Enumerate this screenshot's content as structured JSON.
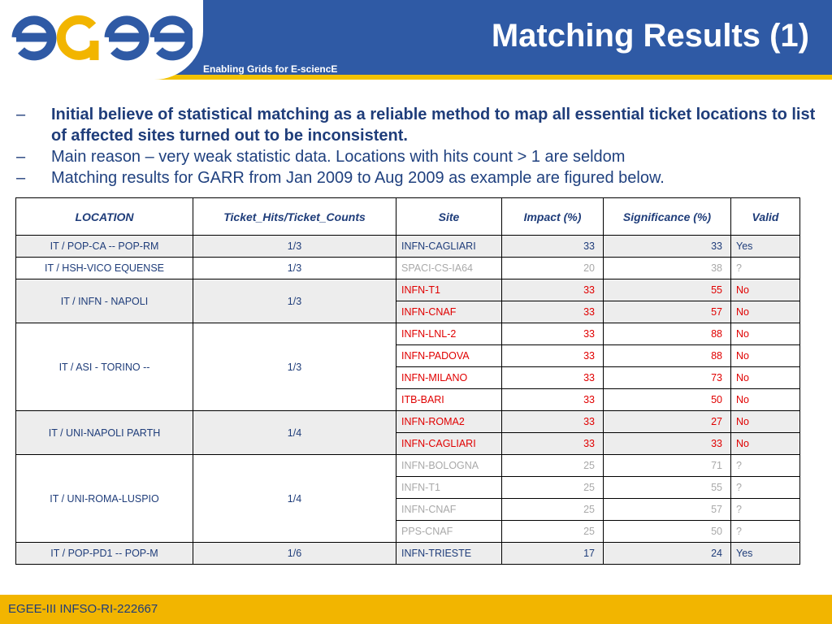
{
  "header": {
    "logo_text": "egee",
    "tagline": "Enabling Grids for E-sciencE",
    "title": "Matching Results (1)"
  },
  "bullets": [
    {
      "marker": "–",
      "text": "Initial believe of statistical matching as a reliable method to map all essential ticket locations to list of affected sites turned out to be inconsistent.",
      "bold": true
    },
    {
      "marker": "–",
      "text": "Main reason – very weak statistic data. Locations with hits count > 1 are seldom",
      "bold": false
    },
    {
      "marker": "–",
      "text": "Matching results for GARR from Jan 2009 to Aug 2009 as example are figured below.",
      "bold": false
    }
  ],
  "table": {
    "headers": [
      "LOCATION",
      "Ticket_Hits/Ticket_Counts",
      "Site",
      "Impact (%)",
      "Significance (%)",
      "Valid"
    ],
    "groups": [
      {
        "location": "IT / POP-CA -- POP-RM",
        "ratio": "1/3",
        "shaded": true,
        "rows": [
          {
            "site": "INFN-CAGLIARI",
            "impact": "33",
            "significance": "33",
            "valid": "Yes",
            "color": "blue"
          }
        ]
      },
      {
        "location": "IT / HSH-VICO EQUENSE",
        "ratio": "1/3",
        "shaded": false,
        "rows": [
          {
            "site": "SPACI-CS-IA64",
            "impact": "20",
            "significance": "38",
            "valid": "?",
            "color": "gray"
          }
        ]
      },
      {
        "location": "IT / INFN - NAPOLI",
        "ratio": "1/3",
        "shaded": true,
        "rows": [
          {
            "site": "INFN-T1",
            "impact": "33",
            "significance": "55",
            "valid": "No",
            "color": "red"
          },
          {
            "site": "INFN-CNAF",
            "impact": "33",
            "significance": "57",
            "valid": "No",
            "color": "red"
          }
        ]
      },
      {
        "location": "IT / ASI - TORINO --",
        "ratio": "1/3",
        "shaded": false,
        "rows": [
          {
            "site": "INFN-LNL-2",
            "impact": "33",
            "significance": "88",
            "valid": "No",
            "color": "red"
          },
          {
            "site": "INFN-PADOVA",
            "impact": "33",
            "significance": "88",
            "valid": "No",
            "color": "red"
          },
          {
            "site": "INFN-MILANO",
            "impact": "33",
            "significance": "73",
            "valid": "No",
            "color": "red"
          },
          {
            "site": "ITB-BARI",
            "impact": "33",
            "significance": "50",
            "valid": "No",
            "color": "red"
          }
        ]
      },
      {
        "location": "IT / UNI-NAPOLI PARTH",
        "ratio": "1/4",
        "shaded": true,
        "rows": [
          {
            "site": "INFN-ROMA2",
            "impact": "33",
            "significance": "27",
            "valid": "No",
            "color": "red"
          },
          {
            "site": "INFN-CAGLIARI",
            "impact": "33",
            "significance": "33",
            "valid": "No",
            "color": "red"
          }
        ]
      },
      {
        "location": "IT / UNI-ROMA-LUSPIO",
        "ratio": "1/4",
        "shaded": false,
        "rows": [
          {
            "site": "INFN-BOLOGNA",
            "impact": "25",
            "significance": "71",
            "valid": "?",
            "color": "gray"
          },
          {
            "site": "INFN-T1",
            "impact": "25",
            "significance": "55",
            "valid": "?",
            "color": "gray"
          },
          {
            "site": "INFN-CNAF",
            "impact": "25",
            "significance": "57",
            "valid": "?",
            "color": "gray"
          },
          {
            "site": "PPS-CNAF",
            "impact": "25",
            "significance": "50",
            "valid": "?",
            "color": "gray"
          }
        ]
      },
      {
        "location": "IT / POP-PD1 -- POP-M",
        "ratio": "1/6",
        "shaded": true,
        "rows": [
          {
            "site": "INFN-TRIESTE",
            "impact": "17",
            "significance": "24",
            "valid": "Yes",
            "color": "blue"
          }
        ]
      }
    ]
  },
  "footer": {
    "text": "EGEE-III INFSO-RI-222667"
  },
  "colors": {
    "header_blue": "#2f5aa5",
    "accent_yellow": "#f2b500",
    "text_blue": "#1f3d7a",
    "red": "#e00000",
    "gray": "#a9a9a9"
  }
}
